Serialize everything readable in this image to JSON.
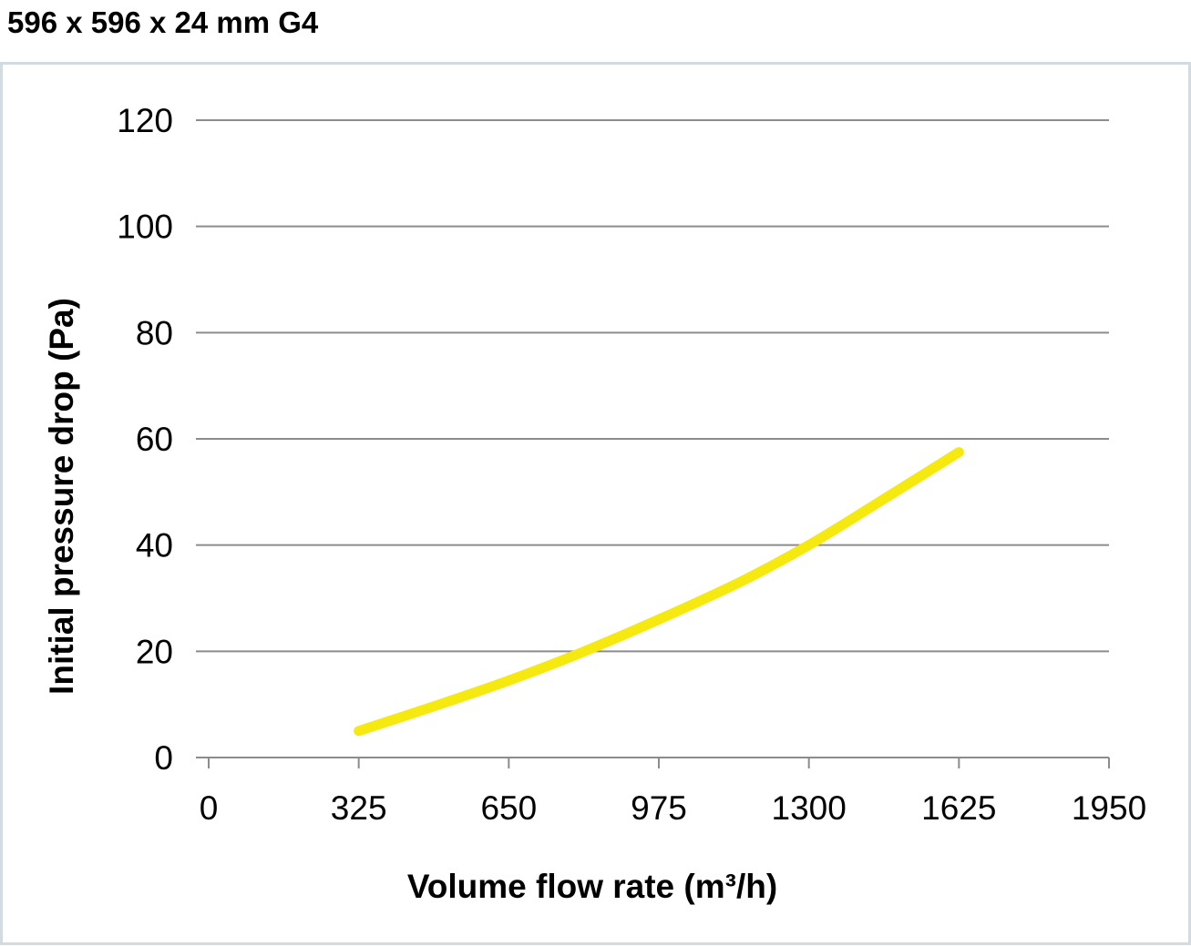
{
  "title": "596 x 596 x 24 mm G4",
  "chart_data": {
    "type": "line",
    "title": "596 x 596 x 24 mm G4",
    "xlabel": "Volume flow rate (m³/h)",
    "ylabel": "Initial pressure drop (Pa)",
    "xlim": [
      0,
      1950
    ],
    "ylim": [
      0,
      120
    ],
    "x_ticks": [
      0,
      325,
      650,
      975,
      1300,
      1625,
      1950
    ],
    "y_ticks": [
      0,
      20,
      40,
      60,
      80,
      100,
      120
    ],
    "grid": "horizontal",
    "legend": "none",
    "series": [
      {
        "color": "#f5e90f",
        "x": [
          325,
          500,
          650,
          800,
          975,
          1150,
          1300,
          1450,
          1625
        ],
        "y": [
          5,
          10,
          14.5,
          19.5,
          26,
          33,
          40,
          48,
          57.5
        ]
      }
    ]
  }
}
